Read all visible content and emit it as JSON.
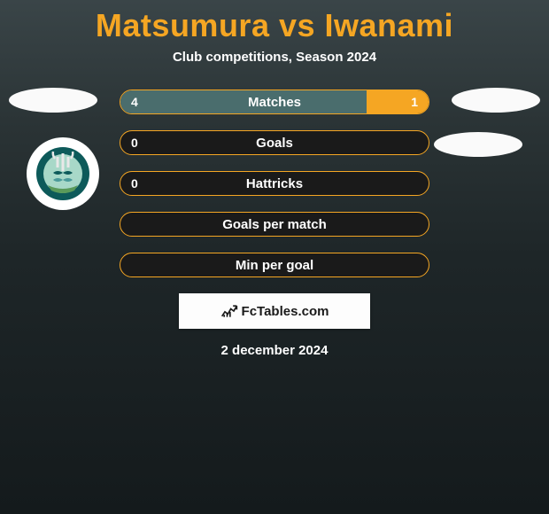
{
  "title": "Matsumura vs Iwanami",
  "subtitle": "Club competitions, Season 2024",
  "date": "2 december 2024",
  "watermark": "FcTables.com",
  "colors": {
    "accent": "#f5a623",
    "bar_left": "#4a6d6d",
    "bar_right": "#f5a623",
    "bg_dark": "#1a1a1a",
    "text": "#ffffff"
  },
  "stats": [
    {
      "label": "Matches",
      "left_val": "4",
      "right_val": "1",
      "left_pct": 80,
      "right_pct": 20
    },
    {
      "label": "Goals",
      "left_val": "0",
      "right_val": "",
      "left_pct": 0,
      "right_pct": 0
    },
    {
      "label": "Hattricks",
      "left_val": "0",
      "right_val": "",
      "left_pct": 0,
      "right_pct": 0
    },
    {
      "label": "Goals per match",
      "left_val": "",
      "right_val": "",
      "left_pct": 0,
      "right_pct": 0
    },
    {
      "label": "Min per goal",
      "left_val": "",
      "right_val": "",
      "left_pct": 0,
      "right_pct": 0
    }
  ],
  "team_badge": {
    "circle_outer": "#0d5a5a",
    "circle_inner": "#a8d8c8",
    "trident": "#e8e8e8",
    "banner": "#5a9a5a"
  }
}
